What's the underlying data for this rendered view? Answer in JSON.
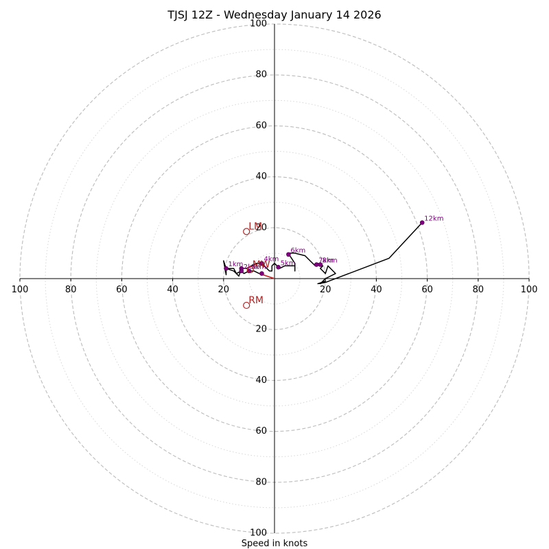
{
  "chart_data": {
    "type": "hodograph",
    "title": "TJSJ 12Z - Wednesday January 14 2026",
    "xlabel": "Speed in knots",
    "range": [
      -100,
      100
    ],
    "rings": {
      "major": [
        20,
        40,
        60,
        80,
        100
      ],
      "minor": [
        10,
        30,
        50,
        70,
        90
      ]
    },
    "tick_labels": [
      "20",
      "40",
      "60",
      "80",
      "100"
    ],
    "colors": {
      "trace": "#000000",
      "trace_low": "#d62728",
      "markers": "#800080",
      "motion": "#b22222",
      "ring": "#bbbbbb",
      "minor_ring": "#d6d6d6",
      "axis": "#000000"
    },
    "trace": [
      [
        0,
        0
      ],
      [
        -3,
        1
      ],
      [
        -6,
        2
      ],
      [
        -8,
        3
      ],
      [
        -10,
        3
      ],
      [
        -12,
        2
      ],
      [
        -13,
        3
      ],
      [
        -15,
        2
      ],
      [
        -16,
        4
      ],
      [
        -18,
        4
      ],
      [
        -19,
        4
      ],
      [
        -19,
        1.5
      ],
      [
        -20,
        7
      ],
      [
        -19,
        4
      ],
      [
        -16,
        3
      ],
      [
        -14,
        1
      ],
      [
        -13,
        4
      ],
      [
        -11,
        4
      ],
      [
        -9,
        5
      ],
      [
        -7,
        6
      ],
      [
        -5,
        6
      ],
      [
        -3,
        4
      ],
      [
        -2,
        3
      ],
      [
        -1,
        3
      ],
      [
        -1,
        5
      ],
      [
        0,
        6
      ],
      [
        2,
        4
      ],
      [
        4,
        5
      ],
      [
        8,
        5
      ],
      [
        8,
        3
      ],
      [
        8,
        6
      ],
      [
        6,
        9
      ],
      [
        5,
        10
      ],
      [
        8,
        10
      ],
      [
        12,
        9
      ],
      [
        14,
        7
      ],
      [
        16,
        5
      ],
      [
        17,
        6
      ],
      [
        19,
        5
      ],
      [
        18,
        4
      ],
      [
        20,
        2
      ],
      [
        21,
        5
      ],
      [
        24,
        2
      ],
      [
        20,
        0
      ],
      [
        19,
        -1
      ],
      [
        18,
        -2
      ],
      [
        20,
        -1
      ],
      [
        17,
        -2
      ],
      [
        20,
        -1.5
      ],
      [
        45,
        8
      ],
      [
        58,
        22
      ]
    ],
    "trace_low_points": [
      [
        0,
        0
      ],
      [
        -3,
        1
      ],
      [
        -6,
        2
      ]
    ],
    "height_markers": [
      {
        "label": "1km",
        "u": -19,
        "v": 4
      },
      {
        "label": "2km",
        "u": -13,
        "v": 3
      },
      {
        "label": "3km",
        "u": -10,
        "v": 3
      },
      {
        "label": "4km",
        "u": -5,
        "v": 6
      },
      {
        "label": "5km",
        "u": 1.5,
        "v": 4.5
      },
      {
        "label": "6km",
        "u": 5.5,
        "v": 9.5
      },
      {
        "label": "7km",
        "u": 16.5,
        "v": 5.5
      },
      {
        "label": "8km",
        "u": 18,
        "v": 5.5
      },
      {
        "label": "12km",
        "u": 58,
        "v": 22
      }
    ],
    "unlabeled_markers": [
      {
        "u": -5,
        "v": 2
      },
      {
        "u": -13,
        "v": 4
      }
    ],
    "storm_motion": [
      {
        "label": "LM",
        "u": -11,
        "v": 18.5
      },
      {
        "label": "RM",
        "u": -11,
        "v": -10.5
      },
      {
        "label": "MW",
        "u": -9.5,
        "v": 3.5
      }
    ]
  }
}
